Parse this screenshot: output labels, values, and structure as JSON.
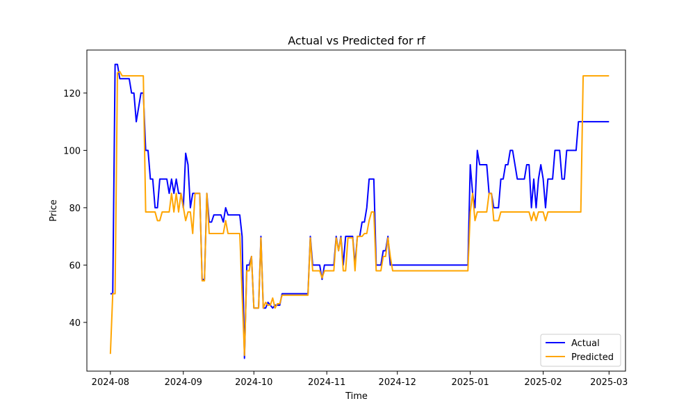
{
  "chart_data": {
    "type": "line",
    "title": "Actual vs Predicted for rf",
    "xlabel": "Time",
    "ylabel": "Price",
    "xlim": [
      "2024-07-22",
      "2025-03-08"
    ],
    "ylim": [
      23,
      135
    ],
    "x_ticks": [
      "2024-08-01",
      "2024-09-01",
      "2024-10-01",
      "2024-11-01",
      "2024-12-01",
      "2025-01-01",
      "2025-02-01",
      "2025-03-01"
    ],
    "x_tick_labels": [
      "2024-08",
      "2024-09",
      "2024-10",
      "2024-11",
      "2024-12",
      "2025-01",
      "2025-02",
      "2025-03"
    ],
    "y_ticks": [
      40,
      60,
      80,
      100,
      120
    ],
    "y_tick_labels": [
      "40",
      "60",
      "80",
      "100",
      "120"
    ],
    "grid": false,
    "legend_position": "bottom-right",
    "series": [
      {
        "name": "Actual",
        "color": "#0000ff",
        "points": [
          [
            "2024-08-01",
            50
          ],
          [
            "2024-08-02",
            50
          ],
          [
            "2024-08-03",
            130
          ],
          [
            "2024-08-04",
            130
          ],
          [
            "2024-08-05",
            125
          ],
          [
            "2024-08-09",
            125
          ],
          [
            "2024-08-10",
            120
          ],
          [
            "2024-08-11",
            120
          ],
          [
            "2024-08-12",
            110
          ],
          [
            "2024-08-13",
            115
          ],
          [
            "2024-08-14",
            120
          ],
          [
            "2024-08-15",
            120
          ],
          [
            "2024-08-16",
            100
          ],
          [
            "2024-08-17",
            100
          ],
          [
            "2024-08-18",
            90
          ],
          [
            "2024-08-19",
            90
          ],
          [
            "2024-08-20",
            80
          ],
          [
            "2024-08-21",
            80
          ],
          [
            "2024-08-22",
            90
          ],
          [
            "2024-08-25",
            90
          ],
          [
            "2024-08-26",
            85
          ],
          [
            "2024-08-27",
            90
          ],
          [
            "2024-08-28",
            85
          ],
          [
            "2024-08-29",
            90
          ],
          [
            "2024-08-30",
            85
          ],
          [
            "2024-08-31",
            85
          ],
          [
            "2024-09-01",
            80
          ],
          [
            "2024-09-02",
            99
          ],
          [
            "2024-09-03",
            95
          ],
          [
            "2024-09-04",
            80
          ],
          [
            "2024-09-05",
            85
          ],
          [
            "2024-09-08",
            85
          ],
          [
            "2024-09-09",
            55
          ],
          [
            "2024-09-10",
            55
          ],
          [
            "2024-09-11",
            85
          ],
          [
            "2024-09-12",
            75
          ],
          [
            "2024-09-13",
            75
          ],
          [
            "2024-09-14",
            77.5
          ],
          [
            "2024-09-17",
            77.5
          ],
          [
            "2024-09-18",
            75
          ],
          [
            "2024-09-19",
            80
          ],
          [
            "2024-09-20",
            77.5
          ],
          [
            "2024-09-25",
            77.5
          ],
          [
            "2024-09-26",
            70
          ],
          [
            "2024-09-27",
            27.5
          ],
          [
            "2024-09-28",
            60
          ],
          [
            "2024-09-29",
            60
          ],
          [
            "2024-09-30",
            63
          ],
          [
            "2024-10-01",
            45
          ],
          [
            "2024-10-03",
            45
          ],
          [
            "2024-10-04",
            70
          ],
          [
            "2024-10-05",
            45
          ],
          [
            "2024-10-06",
            45
          ],
          [
            "2024-10-07",
            47
          ],
          [
            "2024-10-08",
            46
          ],
          [
            "2024-10-09",
            45
          ],
          [
            "2024-10-10",
            46
          ],
          [
            "2024-10-12",
            46
          ],
          [
            "2024-10-13",
            50
          ],
          [
            "2024-10-24",
            50
          ],
          [
            "2024-10-25",
            70
          ],
          [
            "2024-10-26",
            60
          ],
          [
            "2024-10-29",
            60
          ],
          [
            "2024-10-30",
            55
          ],
          [
            "2024-10-31",
            60
          ],
          [
            "2024-11-04",
            60
          ],
          [
            "2024-11-05",
            70
          ],
          [
            "2024-11-06",
            65
          ],
          [
            "2024-11-07",
            70
          ],
          [
            "2024-11-08",
            60
          ],
          [
            "2024-11-09",
            70
          ],
          [
            "2024-11-12",
            70
          ],
          [
            "2024-11-13",
            60
          ],
          [
            "2024-11-14",
            70
          ],
          [
            "2024-11-15",
            70
          ],
          [
            "2024-11-16",
            75
          ],
          [
            "2024-11-17",
            75
          ],
          [
            "2024-11-18",
            80
          ],
          [
            "2024-11-19",
            90
          ],
          [
            "2024-11-21",
            90
          ],
          [
            "2024-11-22",
            60
          ],
          [
            "2024-11-24",
            60
          ],
          [
            "2024-11-25",
            65
          ],
          [
            "2024-11-26",
            65
          ],
          [
            "2024-11-27",
            70
          ],
          [
            "2024-11-28",
            60
          ],
          [
            "2024-12-31",
            60
          ],
          [
            "2025-01-01",
            95
          ],
          [
            "2025-01-02",
            85
          ],
          [
            "2025-01-03",
            80
          ],
          [
            "2025-01-04",
            100
          ],
          [
            "2025-01-05",
            95
          ],
          [
            "2025-01-08",
            95
          ],
          [
            "2025-01-09",
            85
          ],
          [
            "2025-01-10",
            85
          ],
          [
            "2025-01-11",
            80
          ],
          [
            "2025-01-13",
            80
          ],
          [
            "2025-01-14",
            90
          ],
          [
            "2025-01-15",
            90
          ],
          [
            "2025-01-16",
            95
          ],
          [
            "2025-01-17",
            95
          ],
          [
            "2025-01-18",
            100
          ],
          [
            "2025-01-19",
            100
          ],
          [
            "2025-01-20",
            95
          ],
          [
            "2025-01-21",
            90
          ],
          [
            "2025-01-24",
            90
          ],
          [
            "2025-01-25",
            95
          ],
          [
            "2025-01-26",
            95
          ],
          [
            "2025-01-27",
            80
          ],
          [
            "2025-01-28",
            90
          ],
          [
            "2025-01-29",
            80
          ],
          [
            "2025-01-30",
            90
          ],
          [
            "2025-01-31",
            95
          ],
          [
            "2025-02-01",
            90
          ],
          [
            "2025-02-02",
            80
          ],
          [
            "2025-02-03",
            90
          ],
          [
            "2025-02-05",
            90
          ],
          [
            "2025-02-06",
            100
          ],
          [
            "2025-02-08",
            100
          ],
          [
            "2025-02-09",
            90
          ],
          [
            "2025-02-10",
            90
          ],
          [
            "2025-02-11",
            100
          ],
          [
            "2025-02-15",
            100
          ],
          [
            "2025-02-16",
            110
          ],
          [
            "2025-03-01",
            110
          ]
        ]
      },
      {
        "name": "Predicted",
        "color": "#ffa500",
        "points": [
          [
            "2024-08-01",
            29
          ],
          [
            "2024-08-02",
            50
          ],
          [
            "2024-08-03",
            50
          ],
          [
            "2024-08-04",
            127
          ],
          [
            "2024-08-05",
            127.5
          ],
          [
            "2024-08-06",
            126
          ],
          [
            "2024-08-15",
            126
          ],
          [
            "2024-08-16",
            78.5
          ],
          [
            "2024-08-20",
            78.5
          ],
          [
            "2024-08-21",
            75.5
          ],
          [
            "2024-08-22",
            75.5
          ],
          [
            "2024-08-23",
            78.5
          ],
          [
            "2024-08-26",
            78.5
          ],
          [
            "2024-08-27",
            85
          ],
          [
            "2024-08-28",
            78.5
          ],
          [
            "2024-08-29",
            85
          ],
          [
            "2024-08-30",
            78.5
          ],
          [
            "2024-08-31",
            85
          ],
          [
            "2024-09-02",
            75.5
          ],
          [
            "2024-09-03",
            78.5
          ],
          [
            "2024-09-04",
            78.5
          ],
          [
            "2024-09-05",
            71
          ],
          [
            "2024-09-06",
            85
          ],
          [
            "2024-09-08",
            85
          ],
          [
            "2024-09-09",
            54.5
          ],
          [
            "2024-09-10",
            54.5
          ],
          [
            "2024-09-11",
            85
          ],
          [
            "2024-09-12",
            71
          ],
          [
            "2024-09-17",
            71
          ],
          [
            "2024-09-18",
            71
          ],
          [
            "2024-09-19",
            75.5
          ],
          [
            "2024-09-20",
            71
          ],
          [
            "2024-09-24",
            71
          ],
          [
            "2024-09-25",
            71
          ],
          [
            "2024-09-26",
            50
          ],
          [
            "2024-09-27",
            28.5
          ],
          [
            "2024-09-28",
            58
          ],
          [
            "2024-09-29",
            58
          ],
          [
            "2024-09-30",
            63
          ],
          [
            "2024-10-01",
            45
          ],
          [
            "2024-10-03",
            45
          ],
          [
            "2024-10-04",
            69.5
          ],
          [
            "2024-10-05",
            45
          ],
          [
            "2024-10-06",
            47
          ],
          [
            "2024-10-07",
            46
          ],
          [
            "2024-10-08",
            46
          ],
          [
            "2024-10-09",
            48.5
          ],
          [
            "2024-10-10",
            45
          ],
          [
            "2024-10-11",
            46.5
          ],
          [
            "2024-10-12",
            46.5
          ],
          [
            "2024-10-13",
            49.5
          ],
          [
            "2024-10-24",
            49.5
          ],
          [
            "2024-10-25",
            69.5
          ],
          [
            "2024-10-26",
            58
          ],
          [
            "2024-10-29",
            58
          ],
          [
            "2024-10-30",
            55.5
          ],
          [
            "2024-10-31",
            58
          ],
          [
            "2024-11-04",
            58
          ],
          [
            "2024-11-05",
            69.5
          ],
          [
            "2024-11-06",
            65
          ],
          [
            "2024-11-07",
            69.5
          ],
          [
            "2024-11-08",
            58
          ],
          [
            "2024-11-09",
            58
          ],
          [
            "2024-11-10",
            69.5
          ],
          [
            "2024-11-12",
            69.5
          ],
          [
            "2024-11-13",
            58
          ],
          [
            "2024-11-14",
            70
          ],
          [
            "2024-11-16",
            70
          ],
          [
            "2024-11-17",
            71
          ],
          [
            "2024-11-18",
            71
          ],
          [
            "2024-11-19",
            75.5
          ],
          [
            "2024-11-20",
            78.5
          ],
          [
            "2024-11-21",
            78.5
          ],
          [
            "2024-11-22",
            58
          ],
          [
            "2024-11-24",
            58
          ],
          [
            "2024-11-25",
            63
          ],
          [
            "2024-11-26",
            63
          ],
          [
            "2024-11-27",
            69.5
          ],
          [
            "2024-11-28",
            63
          ],
          [
            "2024-11-29",
            58
          ],
          [
            "2024-12-31",
            58
          ],
          [
            "2025-01-01",
            78.5
          ],
          [
            "2025-01-02",
            85
          ],
          [
            "2025-01-03",
            75.5
          ],
          [
            "2025-01-04",
            78.5
          ],
          [
            "2025-01-08",
            78.5
          ],
          [
            "2025-01-09",
            85
          ],
          [
            "2025-01-10",
            85
          ],
          [
            "2025-01-11",
            75.5
          ],
          [
            "2025-01-13",
            75.5
          ],
          [
            "2025-01-14",
            78.5
          ],
          [
            "2025-01-26",
            78.5
          ],
          [
            "2025-01-27",
            75.5
          ],
          [
            "2025-01-28",
            78.5
          ],
          [
            "2025-01-29",
            75.5
          ],
          [
            "2025-01-30",
            78.5
          ],
          [
            "2025-02-01",
            78.5
          ],
          [
            "2025-02-02",
            75.5
          ],
          [
            "2025-02-03",
            78.5
          ],
          [
            "2025-02-17",
            78.5
          ],
          [
            "2025-02-18",
            126
          ],
          [
            "2025-03-01",
            126
          ]
        ]
      }
    ]
  }
}
